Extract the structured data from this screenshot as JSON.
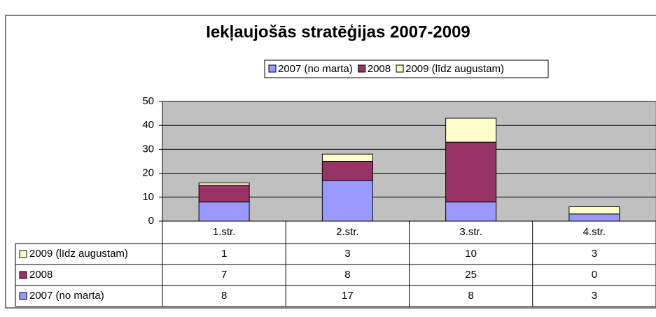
{
  "chart_data": {
    "type": "bar",
    "stacked": true,
    "title": "Iekļaujošās stratēģijas 2007-2009",
    "categories": [
      "1.str.",
      "2.str.",
      "3.str.",
      "4.str."
    ],
    "series": [
      {
        "name": "2007 (no marta)",
        "color": "#9999ff",
        "values": [
          8,
          17,
          8,
          3
        ]
      },
      {
        "name": "2008",
        "color": "#993366",
        "values": [
          7,
          8,
          25,
          0
        ]
      },
      {
        "name": "2009 (līdz augustam)",
        "color": "#ffffcc",
        "values": [
          1,
          3,
          10,
          3
        ]
      }
    ],
    "ylim": [
      0,
      50
    ],
    "yticks": [
      0,
      10,
      20,
      30,
      40,
      50
    ],
    "grid": true,
    "legend": "top"
  }
}
